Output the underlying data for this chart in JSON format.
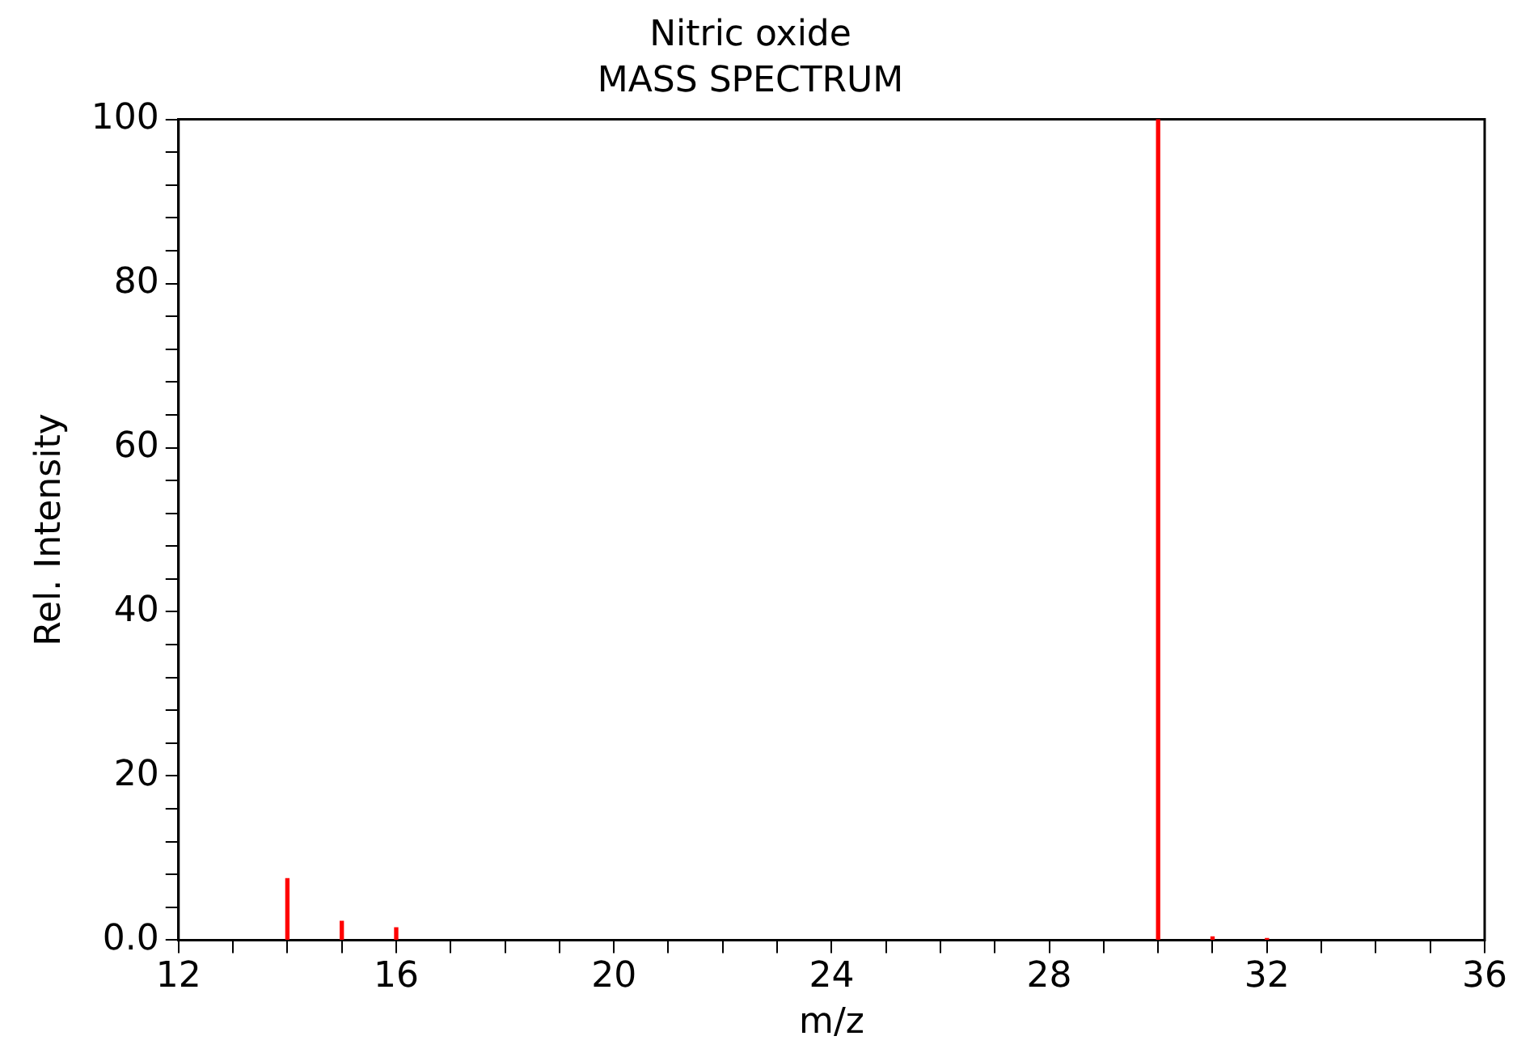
{
  "chart_data": {
    "type": "bar",
    "title": "Nitric oxide",
    "subtitle": "MASS SPECTRUM",
    "xlabel": "m/z",
    "ylabel": "Rel. Intensity",
    "x": [
      14,
      15,
      16,
      30,
      31,
      32
    ],
    "series": [
      {
        "color": "#ff0000",
        "values": [
          7.5,
          2.3,
          1.5,
          100,
          0.4,
          0.2
        ]
      }
    ],
    "xlim": [
      12,
      36
    ],
    "xticks": [
      12,
      {
        "value": 13,
        "label": null
      },
      {
        "value": 14,
        "label": null
      },
      {
        "value": 15,
        "label": null
      },
      16,
      {
        "value": 17,
        "label": null
      },
      {
        "value": 18,
        "label": null
      },
      {
        "value": 19,
        "label": null
      },
      20,
      {
        "value": 21,
        "label": null
      },
      {
        "value": 22,
        "label": null
      },
      {
        "value": 23,
        "label": null
      },
      24,
      {
        "value": 25,
        "label": null
      },
      {
        "value": 26,
        "label": null
      },
      {
        "value": 27,
        "label": null
      },
      28,
      {
        "value": 29,
        "label": null
      },
      {
        "value": 30,
        "label": null
      },
      {
        "value": 31,
        "label": null
      },
      32,
      {
        "value": 33,
        "label": null
      },
      {
        "value": 34,
        "label": null
      },
      {
        "value": 35,
        "label": null
      },
      36
    ],
    "ylim": [
      0,
      100
    ],
    "yticks": [
      {
        "value": 0,
        "label": "0.0"
      },
      {
        "value": 4,
        "label": null
      },
      {
        "value": 8,
        "label": null
      },
      {
        "value": 12,
        "label": null
      },
      {
        "value": 16,
        "label": null
      },
      20,
      {
        "value": 24,
        "label": null
      },
      {
        "value": 28,
        "label": null
      },
      {
        "value": 32,
        "label": null
      },
      {
        "value": 36,
        "label": null
      },
      40,
      {
        "value": 44,
        "label": null
      },
      {
        "value": 48,
        "label": null
      },
      {
        "value": 52,
        "label": null
      },
      {
        "value": 56,
        "label": null
      },
      60,
      {
        "value": 64,
        "label": null
      },
      {
        "value": 68,
        "label": null
      },
      {
        "value": 72,
        "label": null
      },
      {
        "value": 76,
        "label": null
      },
      80,
      {
        "value": 84,
        "label": null
      },
      {
        "value": 88,
        "label": null
      },
      {
        "value": 92,
        "label": null
      },
      {
        "value": 96,
        "label": null
      },
      100
    ],
    "grid": false,
    "legend": false
  }
}
